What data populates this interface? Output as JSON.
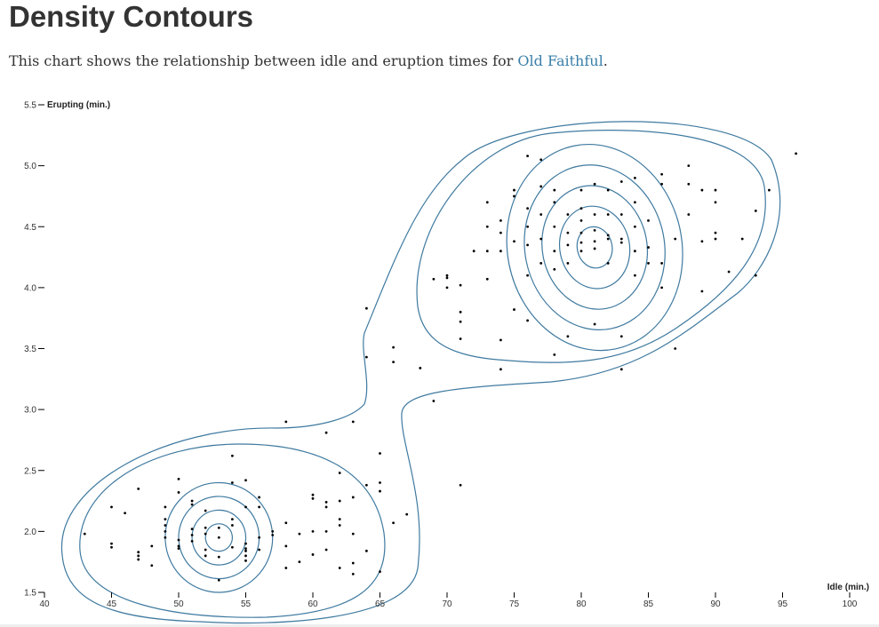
{
  "header": {
    "title": "Density Contours",
    "description_prefix": "This chart shows the relationship between idle and eruption times for ",
    "description_link": "Old Faithful",
    "description_suffix": "."
  },
  "chart_data": {
    "type": "scatter",
    "title": "",
    "xlabel": "Idle (min.)",
    "ylabel": "Erupting (min.)",
    "xlim": [
      40,
      100
    ],
    "ylim": [
      1.5,
      5.5
    ],
    "x_ticks": [
      40,
      45,
      50,
      55,
      60,
      65,
      70,
      75,
      80,
      85,
      90,
      95,
      100
    ],
    "y_ticks": [
      1.5,
      2.0,
      2.5,
      3.0,
      3.5,
      4.0,
      4.5,
      5.0,
      5.5
    ],
    "y_tick_labels": [
      "1.5",
      "2.0",
      "2.5",
      "3.0",
      "3.5",
      "4.0",
      "4.5",
      "5.0",
      "5.5"
    ],
    "contour_color": "#3f7aa0",
    "point_color": "#000000",
    "grid": false,
    "points": [
      [
        43,
        1.98
      ],
      [
        45,
        2.2
      ],
      [
        45,
        1.9
      ],
      [
        45,
        1.87
      ],
      [
        46,
        2.15
      ],
      [
        47,
        1.83
      ],
      [
        47,
        1.8
      ],
      [
        47,
        1.77
      ],
      [
        47,
        2.35
      ],
      [
        48,
        1.88
      ],
      [
        48,
        1.72
      ],
      [
        49,
        2.1
      ],
      [
        49,
        2.05
      ],
      [
        49,
        1.95
      ],
      [
        49,
        2.0
      ],
      [
        49,
        2.2
      ],
      [
        50,
        1.93
      ],
      [
        50,
        1.88
      ],
      [
        50,
        1.86
      ],
      [
        50,
        2.32
      ],
      [
        50,
        2.43
      ],
      [
        51,
        2.02
      ],
      [
        51,
        1.97
      ],
      [
        51,
        1.92
      ],
      [
        51,
        2.22
      ],
      [
        51,
        2.25
      ],
      [
        52,
        1.85
      ],
      [
        52,
        1.98
      ],
      [
        52,
        2.03
      ],
      [
        52,
        2.17
      ],
      [
        52,
        1.8
      ],
      [
        53,
        1.6
      ],
      [
        53,
        1.95
      ],
      [
        53,
        2.03
      ],
      [
        53,
        1.79
      ],
      [
        54,
        2.05
      ],
      [
        54,
        2.1
      ],
      [
        54,
        1.87
      ],
      [
        54,
        2.62
      ],
      [
        54,
        2.4
      ],
      [
        55,
        1.84
      ],
      [
        55,
        1.8
      ],
      [
        55,
        1.86
      ],
      [
        55,
        1.76
      ],
      [
        55,
        1.9
      ],
      [
        55,
        2.2
      ],
      [
        55,
        2.42
      ],
      [
        56,
        1.95
      ],
      [
        56,
        1.85
      ],
      [
        56,
        2.28
      ],
      [
        56,
        2.2
      ],
      [
        57,
        2.0
      ],
      [
        57,
        1.97
      ],
      [
        58,
        1.88
      ],
      [
        58,
        2.07
      ],
      [
        58,
        1.7
      ],
      [
        58,
        2.9
      ],
      [
        59,
        1.98
      ],
      [
        59,
        1.75
      ],
      [
        60,
        1.81
      ],
      [
        60,
        2.0
      ],
      [
        60,
        2.27
      ],
      [
        60,
        2.3
      ],
      [
        61,
        2.0
      ],
      [
        61,
        1.85
      ],
      [
        61,
        2.2
      ],
      [
        61,
        2.24
      ],
      [
        61,
        2.81
      ],
      [
        62,
        2.1
      ],
      [
        62,
        2.05
      ],
      [
        62,
        2.25
      ],
      [
        62,
        1.7
      ],
      [
        62,
        2.48
      ],
      [
        63,
        1.98
      ],
      [
        63,
        2.28
      ],
      [
        63,
        2.9
      ],
      [
        63,
        1.74
      ],
      [
        63,
        1.65
      ],
      [
        64,
        1.84
      ],
      [
        64,
        2.38
      ],
      [
        64,
        3.83
      ],
      [
        64,
        3.43
      ],
      [
        65,
        2.33
      ],
      [
        65,
        2.4
      ],
      [
        65,
        2.64
      ],
      [
        65,
        1.67
      ],
      [
        66,
        2.07
      ],
      [
        66,
        3.39
      ],
      [
        66,
        3.51
      ],
      [
        67,
        2.14
      ],
      [
        68,
        3.34
      ],
      [
        69,
        3.07
      ],
      [
        69,
        4.07
      ],
      [
        70,
        4.08
      ],
      [
        70,
        4.0
      ],
      [
        70,
        4.1
      ],
      [
        71,
        3.72
      ],
      [
        71,
        3.58
      ],
      [
        71,
        3.8
      ],
      [
        71,
        4.02
      ],
      [
        71,
        2.38
      ],
      [
        72,
        4.3
      ],
      [
        73,
        4.07
      ],
      [
        73,
        4.3
      ],
      [
        73,
        4.5
      ],
      [
        73,
        4.7
      ],
      [
        74,
        4.3
      ],
      [
        74,
        4.45
      ],
      [
        74,
        4.55
      ],
      [
        74,
        3.57
      ],
      [
        74,
        3.33
      ],
      [
        75,
        4.38
      ],
      [
        75,
        3.82
      ],
      [
        75,
        4.75
      ],
      [
        75,
        4.8
      ],
      [
        76,
        4.1
      ],
      [
        76,
        4.35
      ],
      [
        76,
        4.5
      ],
      [
        76,
        4.65
      ],
      [
        76,
        3.73
      ],
      [
        76,
        5.08
      ],
      [
        77,
        4.2
      ],
      [
        77,
        4.4
      ],
      [
        77,
        4.6
      ],
      [
        77,
        4.83
      ],
      [
        77,
        5.05
      ],
      [
        78,
        4.15
      ],
      [
        78,
        4.3
      ],
      [
        78,
        4.5
      ],
      [
        78,
        4.7
      ],
      [
        78,
        4.8
      ],
      [
        78,
        3.45
      ],
      [
        79,
        4.2
      ],
      [
        79,
        4.35
      ],
      [
        79,
        4.45
      ],
      [
        79,
        4.6
      ],
      [
        79,
        3.6
      ],
      [
        80,
        4.3
      ],
      [
        80,
        4.37
      ],
      [
        80,
        4.45
      ],
      [
        80,
        4.55
      ],
      [
        80,
        4.65
      ],
      [
        80,
        4.8
      ],
      [
        81,
        4.32
      ],
      [
        81,
        4.38
      ],
      [
        81,
        4.47
      ],
      [
        81,
        4.6
      ],
      [
        81,
        4.85
      ],
      [
        81,
        3.7
      ],
      [
        82,
        4.2
      ],
      [
        82,
        4.4
      ],
      [
        82,
        4.43
      ],
      [
        82,
        4.6
      ],
      [
        82,
        4.8
      ],
      [
        83,
        4.37
      ],
      [
        83,
        4.4
      ],
      [
        83,
        4.6
      ],
      [
        83,
        4.87
      ],
      [
        83,
        3.33
      ],
      [
        83,
        3.6
      ],
      [
        84,
        4.1
      ],
      [
        84,
        4.3
      ],
      [
        84,
        4.5
      ],
      [
        84,
        4.7
      ],
      [
        84,
        4.9
      ],
      [
        85,
        4.2
      ],
      [
        85,
        4.33
      ],
      [
        85,
        4.55
      ],
      [
        86,
        4.0
      ],
      [
        86,
        4.2
      ],
      [
        86,
        4.85
      ],
      [
        86,
        4.93
      ],
      [
        87,
        4.4
      ],
      [
        87,
        3.5
      ],
      [
        88,
        4.6
      ],
      [
        88,
        5.0
      ],
      [
        88,
        4.85
      ],
      [
        89,
        4.38
      ],
      [
        89,
        4.8
      ],
      [
        89,
        3.97
      ],
      [
        90,
        4.4
      ],
      [
        90,
        4.45
      ],
      [
        90,
        4.7
      ],
      [
        90,
        4.8
      ],
      [
        91,
        4.13
      ],
      [
        92,
        4.4
      ],
      [
        93,
        4.63
      ],
      [
        93,
        4.1
      ],
      [
        94,
        4.8
      ],
      [
        96,
        5.1
      ]
    ],
    "contours": [
      {
        "cx": 53,
        "cy": 1.95,
        "rx": 4.0,
        "ry": 0.45,
        "rot": -0.06,
        "n": 4
      },
      {
        "cx": 81,
        "cy": 4.33,
        "rx": 6.5,
        "ry": 0.85,
        "rot": -0.2,
        "n": 5
      }
    ]
  }
}
